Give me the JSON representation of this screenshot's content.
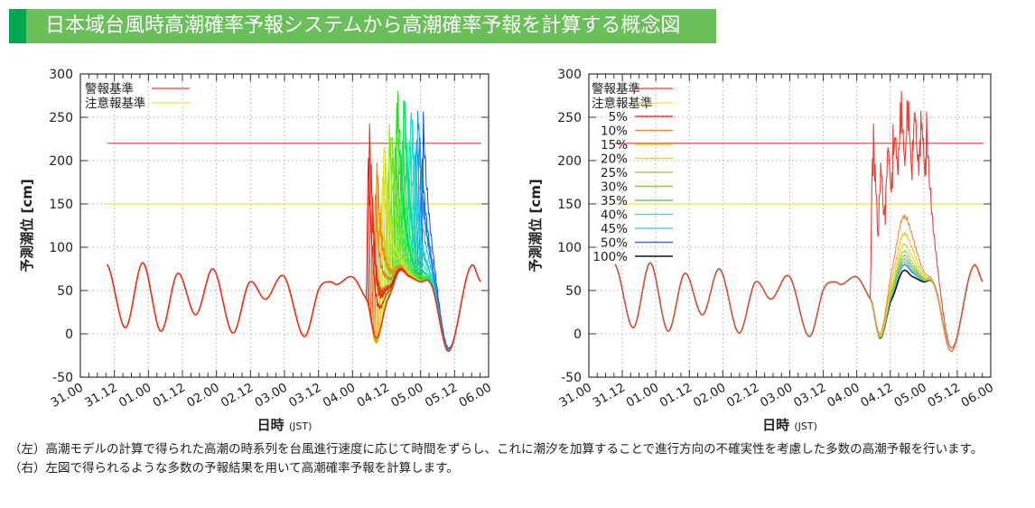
{
  "title": "日本域台風時高潮確率予報システムから高潮確率予報を計算する概念図",
  "caption": [
    "（左）高潮モデルの計算で得られた高潮の時系列を台風進行速度に応じて時間をずらし、これに潮汐を加算することで進行方向の不確実性を考慮した多数の高潮予報を行います。",
    "（右）左図で得られるような多数の予報結果を用いて高潮確率予報を計算します。"
  ],
  "colors": {
    "title_bar": "#6abf5a",
    "title_mark": "#00a650",
    "warning": "#e8412c",
    "advisory": "#f0e040"
  },
  "chart_data": [
    {
      "type": "line",
      "panel": "left",
      "ylabel": "予測潮位 [cm]",
      "xlabel": "日時",
      "xlabel_unit": "(JST)",
      "ylim": [
        -50,
        300
      ],
      "yticks": [
        300,
        250,
        200,
        150,
        100,
        50,
        0,
        -50
      ],
      "xticks": [
        "31.00",
        "31.12",
        "01.00",
        "01.12",
        "02.00",
        "02.12",
        "03.00",
        "03.12",
        "04.00",
        "04.12",
        "05.00",
        "05.12",
        "06.00"
      ],
      "x_unit_hours_from_first_tick": true,
      "grid": true,
      "legend": {
        "position": "top-left",
        "entries": [
          {
            "name": "警報基準",
            "color": "#e8412c",
            "level": 220
          },
          {
            "name": "注意報基準",
            "color": "#f0e040",
            "level": 150
          }
        ]
      },
      "tide": {
        "x": [
          9.4,
          15.9,
          22,
          28.4,
          34.4,
          40.7,
          46.8,
          53.8,
          59.8,
          65.3,
          71.6,
          79,
          84.7,
          88.5,
          90.4,
          95.8,
          101,
          104.4,
          108.5,
          112.7,
          116,
          120,
          123.5,
          129.9,
          137.8,
          141.3
        ],
        "y": [
          80,
          7,
          82,
          3,
          70,
          22,
          75,
          1,
          60,
          40,
          67,
          -3,
          55,
          60,
          57,
          66,
          40,
          -5,
          40,
          73,
          66,
          60,
          58,
          -20,
          78,
          60
        ]
      },
      "ensemble": {
        "members": 40,
        "first_peak_hour": 101.5,
        "last_peak_hour": 121,
        "surge_peak_cm": 185,
        "color_order": "red-to-blue"
      }
    },
    {
      "type": "line",
      "panel": "right",
      "ylabel": "予測潮位 [cm]",
      "xlabel": "日時",
      "xlabel_unit": "(JST)",
      "ylim": [
        -50,
        300
      ],
      "yticks": [
        300,
        250,
        200,
        150,
        100,
        50,
        0,
        -50
      ],
      "xticks": [
        "31.00",
        "31.12",
        "01.00",
        "01.12",
        "02.00",
        "02.12",
        "03.00",
        "03.12",
        "04.00",
        "04.12",
        "05.00",
        "05.12",
        "06.00"
      ],
      "grid": true,
      "legend": {
        "position": "top-left",
        "entries": [
          {
            "name": "警報基準",
            "color": "#e8412c",
            "level": 220
          },
          {
            "name": "注意報基準",
            "color": "#f0e040",
            "level": 150
          }
        ]
      },
      "series": [
        {
          "name": "5%",
          "color": "#e8413a",
          "peak": 250
        },
        {
          "name": "10%",
          "color": "#f08a3c",
          "peak": 135
        },
        {
          "name": "15%",
          "color": "#f5c518",
          "peak": 115
        },
        {
          "name": "20%",
          "color": "#d4dc3c",
          "peak": 103
        },
        {
          "name": "25%",
          "color": "#a8d04a",
          "peak": 95
        },
        {
          "name": "30%",
          "color": "#8cc63f",
          "peak": 90
        },
        {
          "name": "35%",
          "color": "#7cc07a",
          "peak": 86
        },
        {
          "name": "40%",
          "color": "#6ccbb0",
          "peak": 83
        },
        {
          "name": "45%",
          "color": "#5fc8f0",
          "peak": 81
        },
        {
          "name": "50%",
          "color": "#3d6fc8",
          "peak": 79
        },
        {
          "name": "100%",
          "color": "#111111",
          "peak": 73
        }
      ]
    }
  ]
}
